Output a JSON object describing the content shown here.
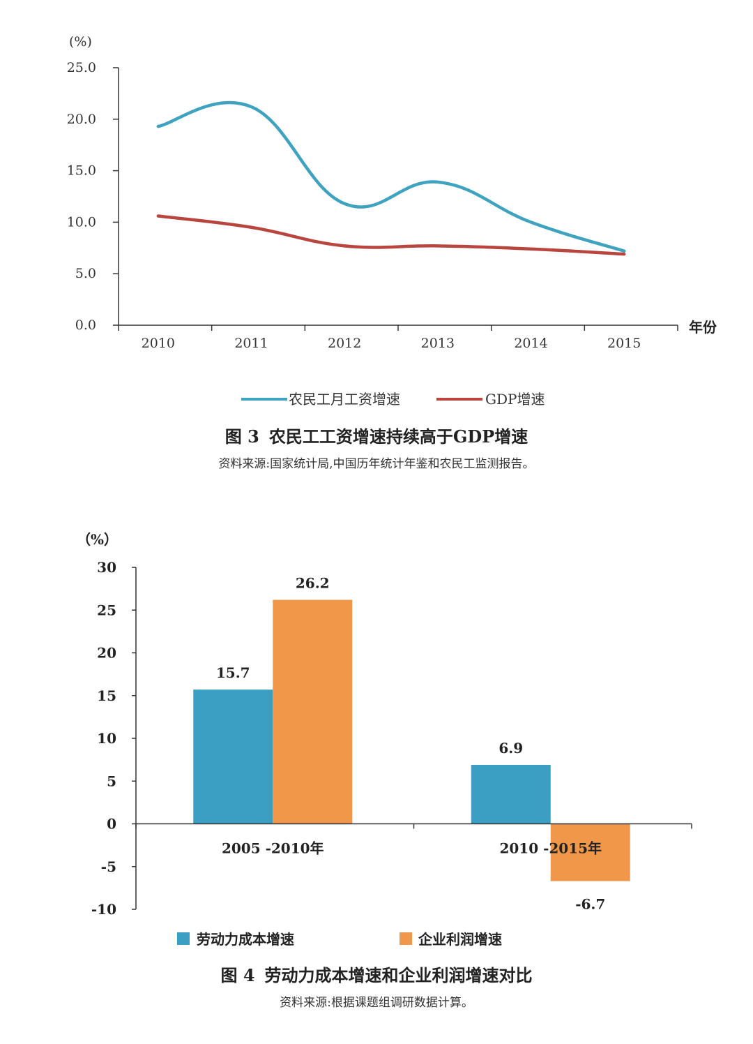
{
  "chart_data": [
    {
      "type": "line",
      "x": [
        "2010",
        "2011",
        "2012",
        "2013",
        "2014",
        "2015"
      ],
      "series": [
        {
          "name": "农民工月工资增速",
          "color": "#3fa3bf",
          "values": [
            19.3,
            21.2,
            11.8,
            13.9,
            10.0,
            7.2
          ]
        },
        {
          "name": "GDP增速",
          "color": "#b8463f",
          "values": [
            10.6,
            9.5,
            7.7,
            7.7,
            7.4,
            6.9
          ]
        }
      ],
      "ylabel": "(%)",
      "xlabel": "年份",
      "yticks": [
        "0.0",
        "5.0",
        "10.0",
        "15.0",
        "20.0",
        "25.0"
      ],
      "ylim": [
        0,
        25
      ],
      "legend_position": "bottom",
      "figure_number": "图 3",
      "title": "农民工工资增速持续高于GDP增速",
      "source": "资料来源:国家统计局,中国历年统计年鉴和农民工监测报告。"
    },
    {
      "type": "bar",
      "categories": [
        "2005  -2010年",
        "2010  -2015年"
      ],
      "series": [
        {
          "name": "劳动力成本增速",
          "color": "#3a9fc2",
          "values": [
            15.7,
            6.9
          ],
          "labels": [
            "15.7",
            "6.9"
          ]
        },
        {
          "name": "企业利润增速",
          "color": "#f0974a",
          "values": [
            26.2,
            -6.7
          ],
          "labels": [
            "26.2",
            "-6.7"
          ]
        }
      ],
      "ylabel": "（%）",
      "yticks": [
        "30",
        "25",
        "20",
        "15",
        "10",
        "5",
        "0",
        "-5",
        "-10"
      ],
      "ylim": [
        -10,
        30
      ],
      "legend_position": "bottom",
      "figure_number": "图 4",
      "title": "劳动力成本增速和企业利润增速对比",
      "source": "资料来源:根据课题组调研数据计算。"
    }
  ]
}
